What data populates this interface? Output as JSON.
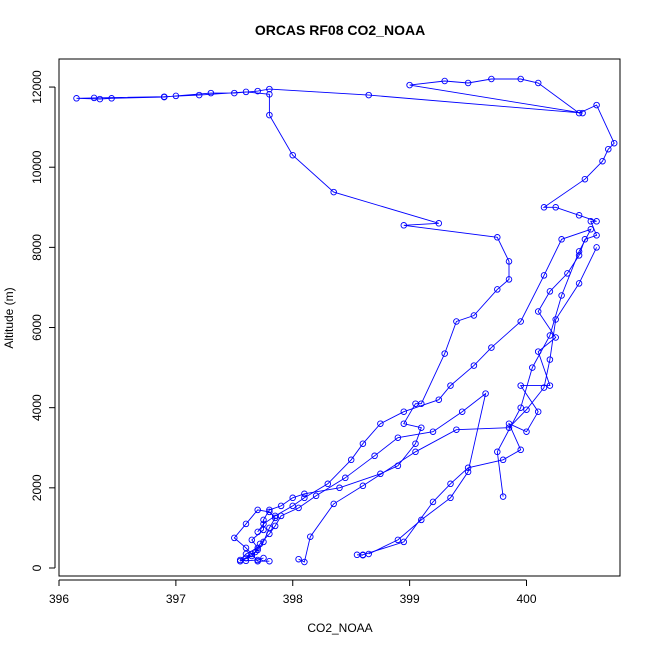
{
  "chart_data": {
    "type": "scatter",
    "title": "ORCAS RF08 CO2_NOAA",
    "xlabel": "CO2_NOAA",
    "ylabel": "Altitude (m)",
    "xlim": [
      396,
      400.8
    ],
    "ylim": [
      -200,
      12700
    ],
    "x_ticks": [
      396,
      397,
      398,
      399,
      400
    ],
    "y_ticks": [
      0,
      2000,
      4000,
      6000,
      8000,
      10000,
      12000
    ],
    "x_tick_labels": [
      "396",
      "397",
      "398",
      "399",
      "400"
    ],
    "y_tick_labels": [
      "0",
      "2000",
      "4000",
      "6000",
      "8000",
      "10000",
      "12000"
    ],
    "grid": false,
    "series": [
      {
        "color": "#0000ff",
        "marker": "open-circle",
        "line": true,
        "points": [
          [
            398.6,
            320
          ],
          [
            398.55,
            330
          ],
          [
            398.6,
            330
          ],
          [
            398.95,
            650
          ],
          [
            399.2,
            1650
          ],
          [
            399.35,
            2100
          ],
          [
            399.5,
            2500
          ],
          [
            399.8,
            2700
          ],
          [
            399.95,
            2950
          ],
          [
            399.85,
            3600
          ],
          [
            400.0,
            3400
          ],
          [
            400.1,
            3900
          ],
          [
            399.95,
            4550
          ],
          [
            400.2,
            4550
          ],
          [
            400.1,
            5400
          ],
          [
            400.25,
            5750
          ],
          [
            400.1,
            6400
          ],
          [
            400.2,
            6900
          ],
          [
            400.35,
            7350
          ],
          [
            400.45,
            7800
          ],
          [
            400.5,
            8200
          ],
          [
            400.6,
            8300
          ],
          [
            400.55,
            8650
          ],
          [
            400.6,
            8650
          ],
          [
            400.45,
            8800
          ],
          [
            400.25,
            9000
          ],
          [
            400.15,
            9000
          ],
          [
            400.5,
            9700
          ],
          [
            400.65,
            10150
          ],
          [
            400.7,
            10450
          ],
          [
            400.75,
            10600
          ],
          [
            400.6,
            11550
          ],
          [
            400.45,
            11350
          ],
          [
            400.1,
            12100
          ],
          [
            399.95,
            12200
          ],
          [
            399.7,
            12200
          ],
          [
            399.5,
            12100
          ],
          [
            399.3,
            12150
          ],
          [
            399.0,
            12050
          ],
          [
            400.48,
            11350
          ],
          [
            398.65,
            11800
          ],
          [
            397.8,
            11950
          ],
          [
            397.7,
            11900
          ],
          [
            397.5,
            11850
          ],
          [
            397.3,
            11850
          ],
          [
            397.0,
            11780
          ],
          [
            396.9,
            11750
          ],
          [
            396.45,
            11720
          ],
          [
            396.35,
            11700
          ],
          [
            396.15,
            11720
          ],
          [
            396.3,
            11730
          ],
          [
            396.9,
            11760
          ],
          [
            397.2,
            11800
          ],
          [
            397.6,
            11880
          ],
          [
            397.8,
            11820
          ],
          [
            397.8,
            11300
          ],
          [
            398.0,
            10300
          ],
          [
            398.35,
            9380
          ],
          [
            399.25,
            8600
          ],
          [
            398.95,
            8550
          ],
          [
            399.75,
            8250
          ],
          [
            399.85,
            7650
          ],
          [
            399.85,
            7200
          ],
          [
            399.75,
            6950
          ],
          [
            399.55,
            6300
          ],
          [
            399.4,
            6150
          ],
          [
            399.3,
            5350
          ],
          [
            399.1,
            4100
          ],
          [
            399.05,
            4100
          ],
          [
            398.95,
            3600
          ],
          [
            399.1,
            3500
          ],
          [
            399.05,
            3100
          ],
          [
            398.9,
            2550
          ],
          [
            398.75,
            2350
          ],
          [
            398.4,
            2000
          ],
          [
            398.1,
            1850
          ],
          [
            398.0,
            1750
          ],
          [
            397.9,
            1550
          ],
          [
            397.8,
            1450
          ],
          [
            397.75,
            1200
          ],
          [
            397.75,
            950
          ],
          [
            397.65,
            700
          ],
          [
            397.7,
            500
          ],
          [
            397.6,
            350
          ],
          [
            397.55,
            200
          ],
          [
            397.6,
            180
          ],
          [
            397.7,
            200
          ],
          [
            397.75,
            250
          ]
        ]
      },
      {
        "color": "#0000ff",
        "marker": "open-circle",
        "line": true,
        "points": [
          [
            398.65,
            350
          ],
          [
            398.9,
            700
          ],
          [
            399.1,
            1200
          ],
          [
            399.35,
            1750
          ],
          [
            399.5,
            2400
          ],
          [
            399.65,
            4350
          ],
          [
            399.45,
            3900
          ],
          [
            399.2,
            3400
          ],
          [
            398.9,
            3250
          ],
          [
            398.7,
            2800
          ],
          [
            398.45,
            2250
          ],
          [
            398.2,
            1800
          ],
          [
            398.05,
            1500
          ],
          [
            397.9,
            1300
          ],
          [
            397.85,
            1050
          ],
          [
            397.8,
            850
          ],
          [
            397.72,
            600
          ],
          [
            397.68,
            400
          ],
          [
            397.6,
            250
          ]
        ]
      },
      {
        "color": "#0000ff",
        "marker": "open-circle",
        "line": true,
        "points": [
          [
            399.8,
            1780
          ],
          [
            399.75,
            2900
          ],
          [
            399.95,
            4000
          ],
          [
            400.05,
            5000
          ],
          [
            400.2,
            5800
          ],
          [
            400.3,
            6800
          ],
          [
            400.45,
            7900
          ],
          [
            400.55,
            8450
          ],
          [
            400.3,
            8200
          ],
          [
            400.15,
            7300
          ],
          [
            399.95,
            6150
          ],
          [
            399.7,
            5500
          ],
          [
            399.55,
            5050
          ],
          [
            399.35,
            4550
          ],
          [
            399.25,
            4200
          ],
          [
            398.95,
            3900
          ],
          [
            398.75,
            3600
          ],
          [
            398.6,
            3100
          ],
          [
            398.5,
            2700
          ],
          [
            398.3,
            2100
          ],
          [
            398.1,
            1750
          ],
          [
            398.0,
            1550
          ],
          [
            397.85,
            1300
          ],
          [
            397.75,
            1100
          ],
          [
            397.7,
            900
          ]
        ]
      },
      {
        "color": "#0000ff",
        "marker": "open-circle",
        "line": true,
        "points": [
          [
            398.05,
            220
          ],
          [
            398.1,
            150
          ],
          [
            398.15,
            780
          ],
          [
            398.35,
            1600
          ],
          [
            398.6,
            2050
          ],
          [
            399.05,
            2900
          ],
          [
            399.4,
            3450
          ],
          [
            399.85,
            3500
          ],
          [
            400.0,
            3950
          ],
          [
            400.15,
            4500
          ],
          [
            400.2,
            5200
          ],
          [
            400.25,
            6200
          ],
          [
            400.45,
            7100
          ],
          [
            400.6,
            8000
          ]
        ]
      },
      {
        "color": "#0000ff",
        "marker": "open-circle",
        "line": true,
        "points": [
          [
            397.55,
            170
          ],
          [
            397.65,
            300
          ],
          [
            397.7,
            450
          ],
          [
            397.75,
            650
          ],
          [
            397.8,
            1000
          ],
          [
            397.85,
            1250
          ],
          [
            397.8,
            1400
          ],
          [
            397.7,
            1450
          ],
          [
            397.6,
            1100
          ],
          [
            397.5,
            750
          ],
          [
            397.6,
            500
          ],
          [
            397.65,
            350
          ],
          [
            397.7,
            170
          ],
          [
            397.8,
            170
          ]
        ]
      }
    ]
  }
}
